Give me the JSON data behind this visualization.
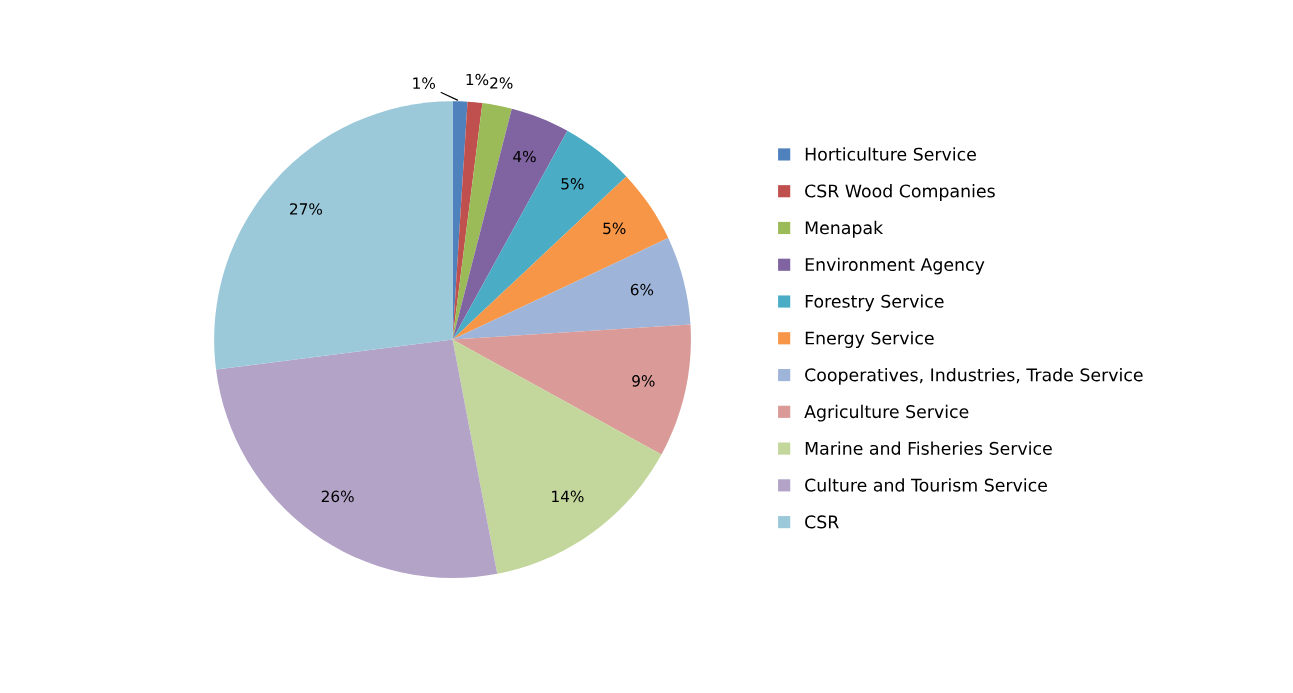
{
  "chart_data": {
    "type": "pie",
    "categories": [
      "Horticulture Service",
      "CSR Wood Companies",
      "Menapak",
      "Environment Agency",
      "Forestry Service",
      "Energy Service",
      "Cooperatives, Industries, Trade Service",
      "Agriculture Service",
      "Marine and Fisheries Service",
      "Culture and Tourism Service",
      "CSR"
    ],
    "values": [
      1,
      1,
      2,
      4,
      5,
      5,
      6,
      9,
      14,
      26,
      27
    ],
    "value_labels": [
      "1%",
      "1%",
      "2%",
      "4%",
      "5%",
      "5%",
      "6%",
      "9%",
      "14%",
      "26%",
      "27%"
    ],
    "colors": [
      "#4f81bd",
      "#c0504d",
      "#9bbb59",
      "#8064a2",
      "#4bacc6",
      "#f79646",
      "#9fb4d9",
      "#d99a98",
      "#c3d69b",
      "#b2a3c7",
      "#9bc9da"
    ],
    "legend": "right"
  }
}
